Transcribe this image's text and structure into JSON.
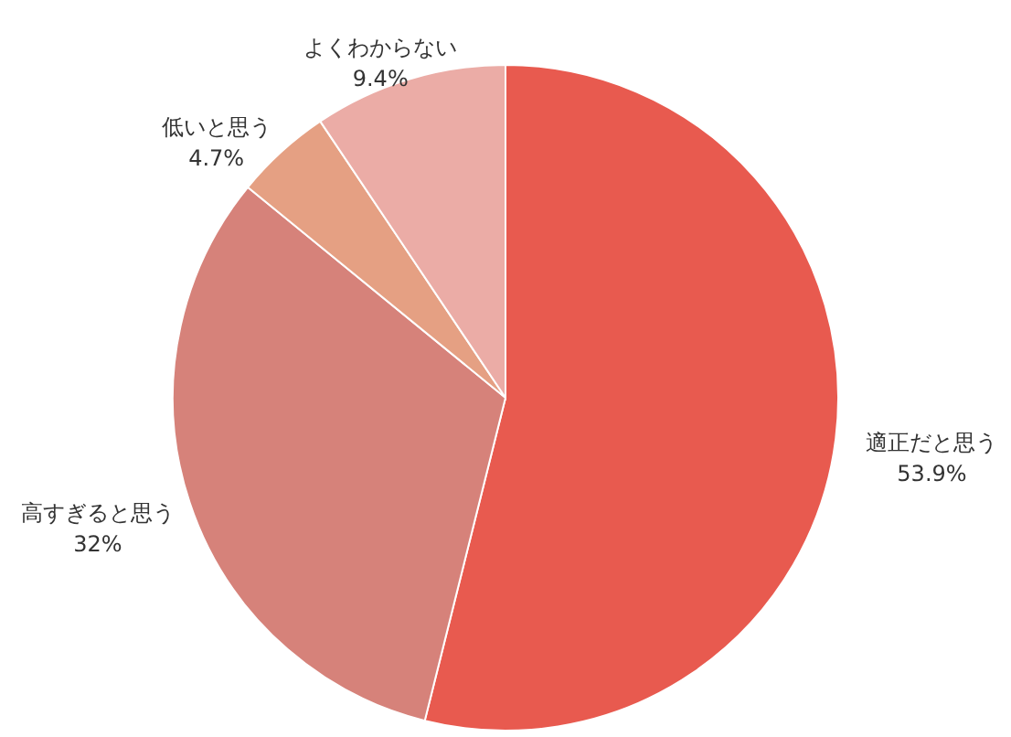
{
  "chart_data": {
    "type": "pie",
    "categories": [
      "適正だと思う",
      "高すぎると思う",
      "低いと思う",
      "よくわからない"
    ],
    "values": [
      53.9,
      32,
      4.7,
      9.4
    ],
    "colors": [
      "#e85a4f",
      "#d6827a",
      "#e5a083",
      "#ebaca6"
    ],
    "value_labels": [
      "53.9%",
      "32%",
      "4.7%",
      "9.4%"
    ]
  }
}
